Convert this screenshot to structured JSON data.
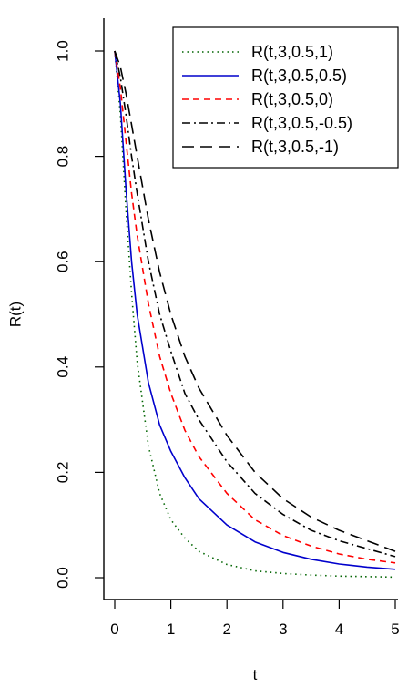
{
  "chart_data": {
    "type": "line",
    "title": "",
    "xlabel": "t",
    "ylabel": "R(t)",
    "xlim": [
      0,
      5
    ],
    "ylim": [
      0,
      1
    ],
    "x_ticks": [
      "0",
      "1",
      "2",
      "3",
      "4",
      "5"
    ],
    "y_ticks": [
      "0.0",
      "0.2",
      "0.4",
      "0.6",
      "0.8",
      "1.0"
    ],
    "grid": false,
    "legend_position": "top-right",
    "x": [
      0,
      0.1,
      0.2,
      0.3,
      0.4,
      0.6,
      0.8,
      1,
      1.25,
      1.5,
      2,
      2.5,
      3,
      3.5,
      4,
      4.5,
      5
    ],
    "series": [
      {
        "name": "R(t,3,0.5,1)",
        "color": "#006400",
        "dash": "dotted",
        "values": [
          1.0,
          0.88,
          0.7,
          0.54,
          0.41,
          0.25,
          0.16,
          0.11,
          0.075,
          0.05,
          0.025,
          0.013,
          0.008,
          0.005,
          0.003,
          0.002,
          0.001
        ]
      },
      {
        "name": "R(t,3,0.5,0.5)",
        "color": "#0000cc",
        "dash": "solid",
        "values": [
          1.0,
          0.9,
          0.74,
          0.6,
          0.5,
          0.37,
          0.29,
          0.24,
          0.19,
          0.15,
          0.1,
          0.068,
          0.048,
          0.035,
          0.026,
          0.02,
          0.016
        ]
      },
      {
        "name": "R(t,3,0.5,0)",
        "color": "#ff0000",
        "dash": "dashed",
        "values": [
          1.0,
          0.93,
          0.83,
          0.73,
          0.65,
          0.52,
          0.42,
          0.35,
          0.28,
          0.23,
          0.16,
          0.11,
          0.08,
          0.06,
          0.045,
          0.035,
          0.028
        ]
      },
      {
        "name": "R(t,3,0.5,-0.5)",
        "color": "#000000",
        "dash": "dashdot",
        "values": [
          1.0,
          0.95,
          0.88,
          0.8,
          0.73,
          0.6,
          0.5,
          0.43,
          0.35,
          0.3,
          0.22,
          0.16,
          0.12,
          0.09,
          0.07,
          0.055,
          0.04
        ]
      },
      {
        "name": "R(t,3,0.5,-1)",
        "color": "#000000",
        "dash": "longdash",
        "values": [
          1.0,
          0.97,
          0.92,
          0.86,
          0.8,
          0.68,
          0.58,
          0.5,
          0.42,
          0.36,
          0.27,
          0.2,
          0.15,
          0.115,
          0.09,
          0.07,
          0.05
        ]
      }
    ]
  }
}
